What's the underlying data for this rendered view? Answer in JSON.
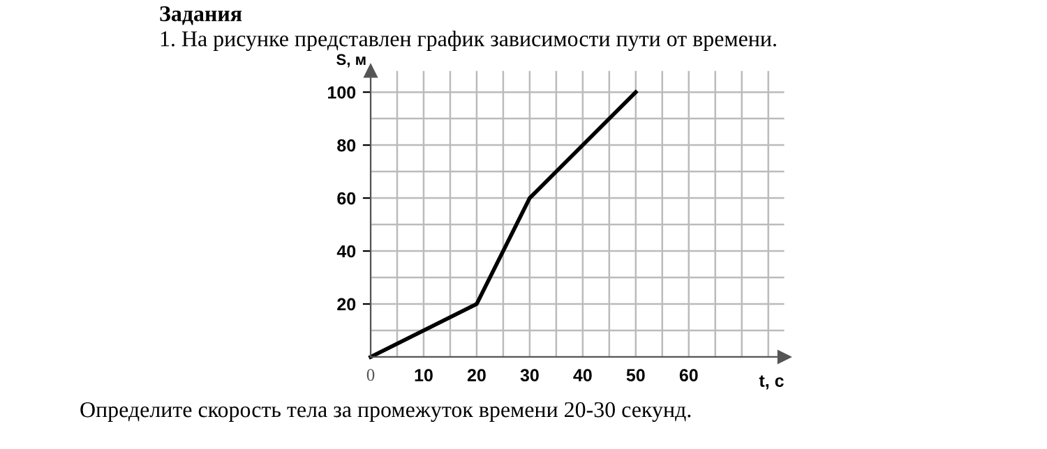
{
  "chart_data": {
    "type": "line",
    "title": "Задания",
    "subtitle": "1. На рисунке представлен график зависимости пути от времени.",
    "xlabel": "t, с",
    "ylabel": "S, м",
    "annotations": [
      "Определите скорость тела за промежуток времени 20-30 секунд."
    ],
    "x": [
      0,
      20,
      30,
      50
    ],
    "series": [
      {
        "color": "#000000",
        "values": [
          0,
          20,
          60,
          100
        ]
      }
    ],
    "xlim": [
      0,
      78
    ],
    "ylim": [
      0,
      108
    ],
    "xticks": [
      {
        "value": 0,
        "label": "0"
      },
      {
        "value": 5,
        "label": null
      },
      10,
      {
        "value": 15,
        "label": null
      },
      20,
      {
        "value": 25,
        "label": null
      },
      30,
      {
        "value": 35,
        "label": null
      },
      40,
      {
        "value": 45,
        "label": null
      },
      50,
      {
        "value": 55,
        "label": null
      },
      60,
      {
        "value": 65,
        "label": null
      },
      {
        "value": 70,
        "label": null
      },
      {
        "value": 75,
        "label": null
      }
    ],
    "yticks": [
      {
        "value": 10,
        "label": null
      },
      20,
      {
        "value": 30,
        "label": null
      },
      40,
      {
        "value": 50,
        "label": null
      },
      60,
      {
        "value": 70,
        "label": null
      },
      80,
      {
        "value": 90,
        "label": null
      },
      100
    ],
    "grid": true,
    "marker": "none",
    "line_style": "solid"
  }
}
